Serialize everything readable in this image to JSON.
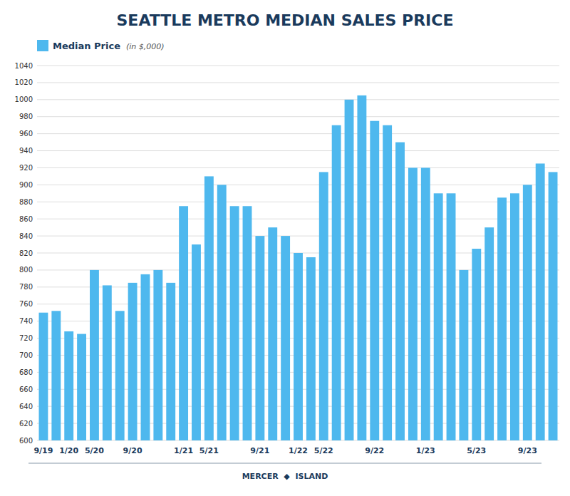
{
  "chart_data": {
    "type": "bar",
    "title": "SEATTLE METRO MEDIAN SALES PRICE",
    "categories": [
      "9/19",
      null,
      "1/20",
      null,
      "5/20",
      null,
      null,
      "9/20",
      null,
      null,
      null,
      "1/21",
      null,
      "5/21",
      null,
      null,
      null,
      "9/21",
      null,
      null,
      "1/22",
      null,
      "5/22",
      null,
      null,
      null,
      "9/22",
      null,
      null,
      null,
      "1/23",
      null,
      null,
      null,
      "5/23",
      null,
      null,
      null,
      "9/23",
      null,
      null
    ],
    "series": [
      {
        "name": "Median Price",
        "color": "#4eb8ee",
        "values": [
          750,
          752,
          728,
          725,
          800,
          782,
          752,
          785,
          795,
          800,
          785,
          875,
          830,
          910,
          900,
          875,
          875,
          840,
          850,
          840,
          820,
          815,
          915,
          970,
          1000,
          1005,
          975,
          970,
          950,
          920,
          920,
          890,
          890,
          800,
          825,
          850,
          885,
          890,
          900,
          925,
          915
        ]
      }
    ],
    "ylim": [
      600,
      1040
    ],
    "yticks": [
      600,
      620,
      640,
      660,
      680,
      700,
      720,
      740,
      760,
      780,
      800,
      820,
      840,
      860,
      880,
      900,
      920,
      940,
      960,
      980,
      1000,
      1020,
      1040
    ],
    "grid": true,
    "legend": "upper left",
    "annotations": [
      "(in $,000)",
      "MERCER  ◆  ISLAND"
    ]
  }
}
